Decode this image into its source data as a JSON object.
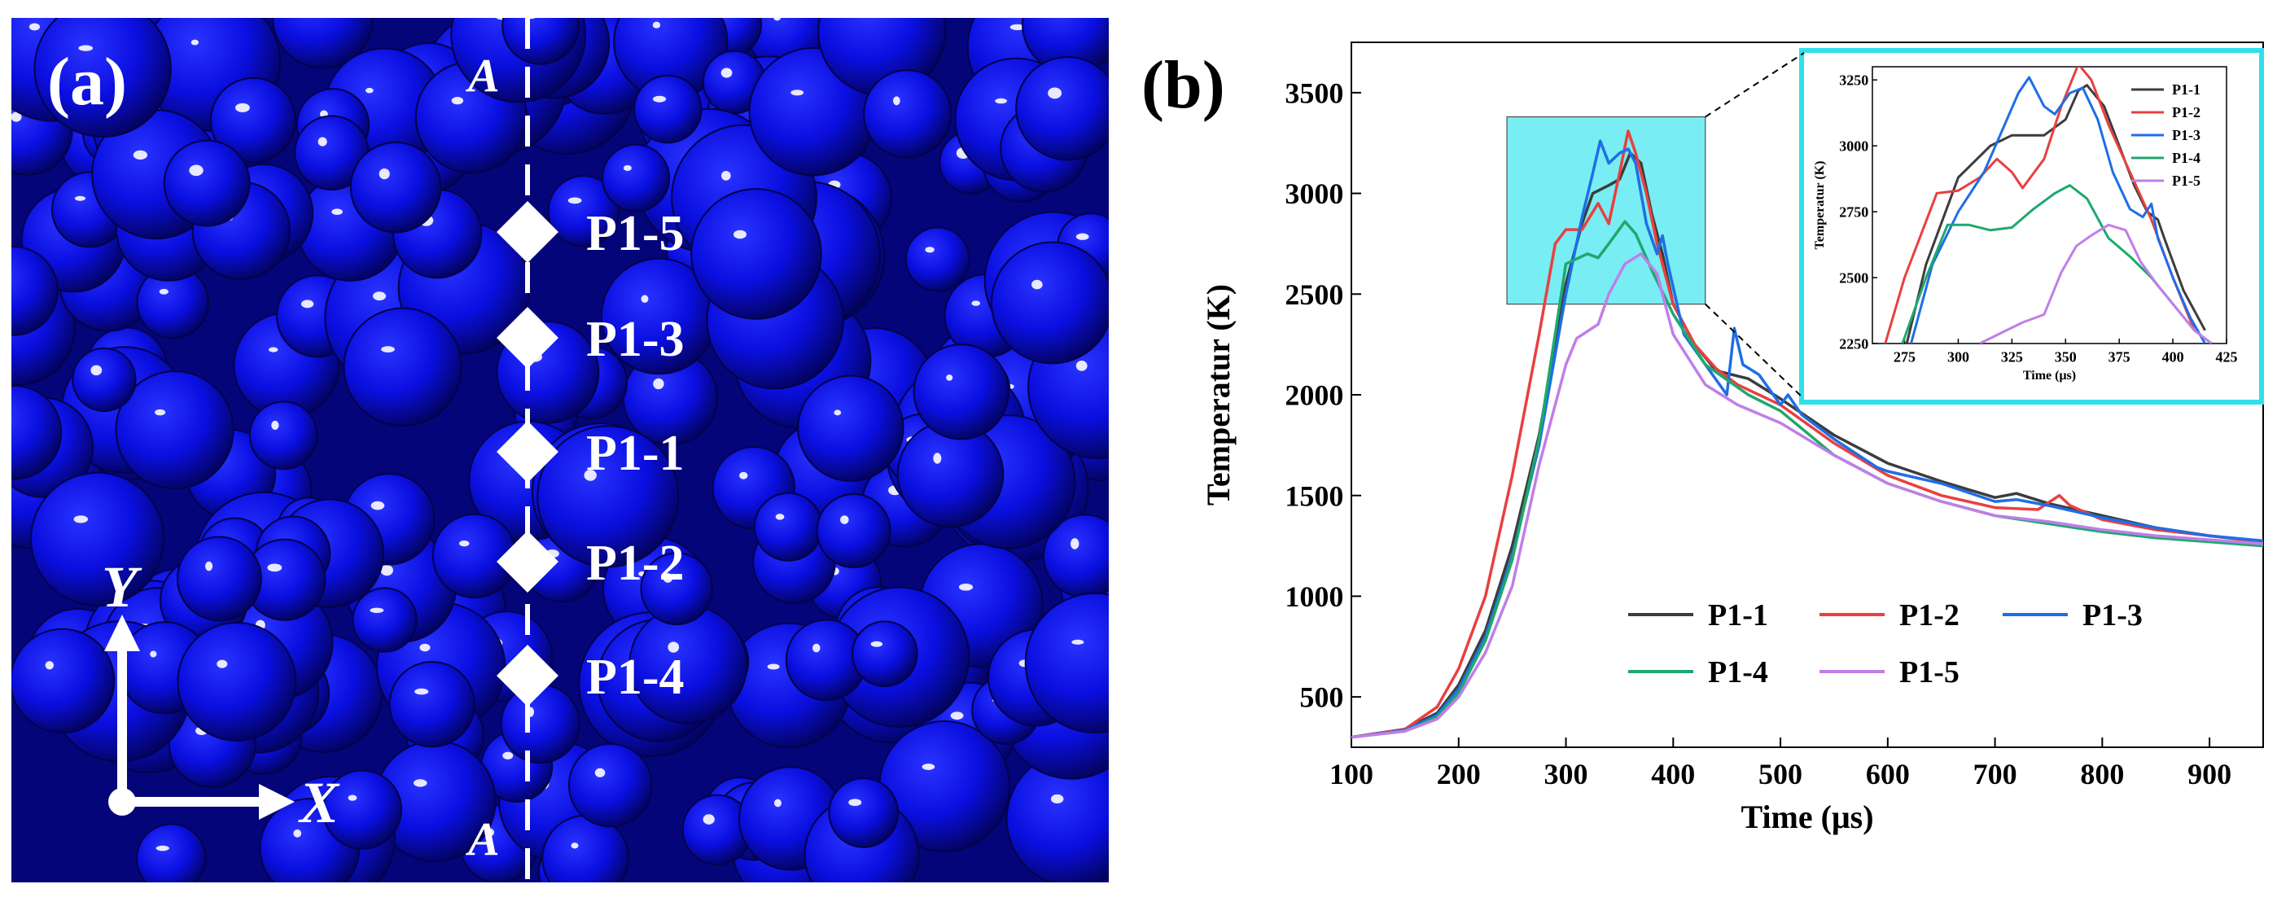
{
  "panel_a": {
    "label": "(a)",
    "section_label_top": "A",
    "section_label_bottom": "A",
    "axis_y_label": "Y",
    "axis_x_label": "X",
    "points": [
      {
        "name": "P1-5"
      },
      {
        "name": "P1-3"
      },
      {
        "name": "P1-1"
      },
      {
        "name": "P1-2"
      },
      {
        "name": "P1-4"
      }
    ],
    "colors": {
      "particle_base": "#0a0fe0",
      "particle_dark": "#06067a",
      "marker": "#ffffff"
    }
  },
  "panel_b": {
    "label": "(b)"
  },
  "chart_data": [
    {
      "id": "main",
      "type": "line",
      "title": "",
      "xlabel": "Time (μs)",
      "ylabel": "Temperatur (K)",
      "xlim": [
        100,
        950
      ],
      "ylim": [
        250,
        3750
      ],
      "xticks": [
        100,
        200,
        300,
        400,
        500,
        600,
        700,
        800,
        900
      ],
      "yticks": [
        500,
        1000,
        1500,
        2000,
        2500,
        3000,
        3500
      ],
      "legend": "bottom-right",
      "highlight_box": {
        "x": [
          245,
          430
        ],
        "y": [
          2450,
          3380
        ],
        "color": "#3ee6ee"
      },
      "series": [
        {
          "name": "P1-1",
          "color": "#3c3c3c",
          "points": [
            [
              100,
              300
            ],
            [
              150,
              340
            ],
            [
              180,
              420
            ],
            [
              200,
              560
            ],
            [
              225,
              830
            ],
            [
              250,
              1250
            ],
            [
              275,
              1800
            ],
            [
              300,
              2550
            ],
            [
              315,
              2850
            ],
            [
              325,
              3000
            ],
            [
              340,
              3040
            ],
            [
              350,
              3070
            ],
            [
              360,
              3200
            ],
            [
              370,
              3150
            ],
            [
              380,
              2900
            ],
            [
              390,
              2700
            ],
            [
              400,
              2450
            ],
            [
              420,
              2250
            ],
            [
              440,
              2120
            ],
            [
              455,
              2100
            ],
            [
              470,
              2080
            ],
            [
              500,
              1980
            ],
            [
              550,
              1800
            ],
            [
              600,
              1660
            ],
            [
              650,
              1570
            ],
            [
              700,
              1490
            ],
            [
              720,
              1510
            ],
            [
              750,
              1460
            ],
            [
              800,
              1400
            ],
            [
              850,
              1340
            ],
            [
              900,
              1300
            ],
            [
              950,
              1270
            ]
          ]
        },
        {
          "name": "P1-2",
          "color": "#e84040",
          "points": [
            [
              100,
              300
            ],
            [
              150,
              340
            ],
            [
              180,
              450
            ],
            [
              200,
              640
            ],
            [
              225,
              1000
            ],
            [
              250,
              1600
            ],
            [
              275,
              2300
            ],
            [
              290,
              2750
            ],
            [
              300,
              2820
            ],
            [
              315,
              2820
            ],
            [
              330,
              2950
            ],
            [
              340,
              2850
            ],
            [
              350,
              3100
            ],
            [
              358,
              3310
            ],
            [
              365,
              3200
            ],
            [
              375,
              3000
            ],
            [
              385,
              2750
            ],
            [
              400,
              2450
            ],
            [
              420,
              2250
            ],
            [
              440,
              2130
            ],
            [
              460,
              2050
            ],
            [
              500,
              1950
            ],
            [
              550,
              1760
            ],
            [
              600,
              1600
            ],
            [
              650,
              1500
            ],
            [
              700,
              1440
            ],
            [
              740,
              1430
            ],
            [
              760,
              1500
            ],
            [
              770,
              1450
            ],
            [
              800,
              1380
            ],
            [
              850,
              1330
            ],
            [
              900,
              1300
            ],
            [
              950,
              1270
            ]
          ]
        },
        {
          "name": "P1-3",
          "color": "#1e6ee6",
          "points": [
            [
              100,
              300
            ],
            [
              150,
              335
            ],
            [
              180,
              410
            ],
            [
              200,
              540
            ],
            [
              225,
              800
            ],
            [
              250,
              1200
            ],
            [
              275,
              1750
            ],
            [
              300,
              2500
            ],
            [
              315,
              2880
            ],
            [
              325,
              3100
            ],
            [
              332,
              3260
            ],
            [
              340,
              3150
            ],
            [
              350,
              3200
            ],
            [
              358,
              3220
            ],
            [
              365,
              3150
            ],
            [
              375,
              2850
            ],
            [
              385,
              2700
            ],
            [
              390,
              2790
            ],
            [
              395,
              2650
            ],
            [
              410,
              2300
            ],
            [
              430,
              2150
            ],
            [
              450,
              2000
            ],
            [
              457,
              2330
            ],
            [
              465,
              2150
            ],
            [
              480,
              2100
            ],
            [
              500,
              1950
            ],
            [
              507,
              2000
            ],
            [
              520,
              1900
            ],
            [
              550,
              1780
            ],
            [
              590,
              1640
            ],
            [
              600,
              1620
            ],
            [
              650,
              1560
            ],
            [
              700,
              1470
            ],
            [
              720,
              1480
            ],
            [
              750,
              1450
            ],
            [
              800,
              1390
            ],
            [
              850,
              1340
            ],
            [
              900,
              1300
            ],
            [
              950,
              1275
            ]
          ]
        },
        {
          "name": "P1-4",
          "color": "#1ea86e",
          "points": [
            [
              100,
              300
            ],
            [
              150,
              330
            ],
            [
              180,
              400
            ],
            [
              200,
              520
            ],
            [
              225,
              780
            ],
            [
              250,
              1180
            ],
            [
              275,
              1780
            ],
            [
              300,
              2650
            ],
            [
              320,
              2700
            ],
            [
              330,
              2680
            ],
            [
              340,
              2750
            ],
            [
              355,
              2860
            ],
            [
              365,
              2800
            ],
            [
              380,
              2620
            ],
            [
              400,
              2400
            ],
            [
              430,
              2150
            ],
            [
              470,
              2000
            ],
            [
              500,
              1920
            ],
            [
              550,
              1700
            ],
            [
              600,
              1560
            ],
            [
              650,
              1470
            ],
            [
              700,
              1400
            ],
            [
              750,
              1360
            ],
            [
              800,
              1320
            ],
            [
              850,
              1290
            ],
            [
              900,
              1270
            ],
            [
              950,
              1250
            ]
          ]
        },
        {
          "name": "P1-5",
          "color": "#c07ee8",
          "points": [
            [
              100,
              300
            ],
            [
              150,
              330
            ],
            [
              180,
              390
            ],
            [
              200,
              500
            ],
            [
              225,
              720
            ],
            [
              250,
              1050
            ],
            [
              275,
              1650
            ],
            [
              300,
              2150
            ],
            [
              310,
              2280
            ],
            [
              330,
              2350
            ],
            [
              340,
              2500
            ],
            [
              355,
              2650
            ],
            [
              370,
              2700
            ],
            [
              385,
              2600
            ],
            [
              400,
              2300
            ],
            [
              430,
              2050
            ],
            [
              460,
              1950
            ],
            [
              500,
              1860
            ],
            [
              550,
              1700
            ],
            [
              600,
              1560
            ],
            [
              650,
              1470
            ],
            [
              700,
              1400
            ],
            [
              750,
              1370
            ],
            [
              800,
              1330
            ],
            [
              850,
              1300
            ],
            [
              900,
              1280
            ],
            [
              950,
              1260
            ]
          ]
        }
      ]
    },
    {
      "id": "inset",
      "type": "line",
      "title": "",
      "xlabel": "Time (μs)",
      "ylabel": "Temperatur (K)",
      "xlim": [
        260,
        425
      ],
      "ylim": [
        2250,
        3300
      ],
      "xticks": [
        275,
        300,
        325,
        350,
        375,
        400,
        425
      ],
      "yticks": [
        2250,
        2500,
        2750,
        3000,
        3250
      ],
      "legend": "top-right",
      "series": [
        {
          "name": "P1-1",
          "color": "#3c3c3c",
          "points": [
            [
              276,
              2250
            ],
            [
              285,
              2550
            ],
            [
              300,
              2880
            ],
            [
              315,
              3000
            ],
            [
              325,
              3040
            ],
            [
              340,
              3040
            ],
            [
              350,
              3100
            ],
            [
              356,
              3210
            ],
            [
              360,
              3230
            ],
            [
              368,
              3150
            ],
            [
              375,
              3000
            ],
            [
              382,
              2850
            ],
            [
              388,
              2750
            ],
            [
              393,
              2720
            ],
            [
              396,
              2650
            ],
            [
              405,
              2450
            ],
            [
              415,
              2300
            ]
          ]
        },
        {
          "name": "P1-2",
          "color": "#e84040",
          "points": [
            [
              266,
              2250
            ],
            [
              275,
              2500
            ],
            [
              290,
              2820
            ],
            [
              300,
              2830
            ],
            [
              310,
              2880
            ],
            [
              318,
              2950
            ],
            [
              325,
              2900
            ],
            [
              330,
              2840
            ],
            [
              340,
              2950
            ],
            [
              348,
              3150
            ],
            [
              356,
              3310
            ],
            [
              362,
              3250
            ],
            [
              370,
              3080
            ],
            [
              380,
              2900
            ],
            [
              390,
              2720
            ],
            [
              400,
              2500
            ],
            [
              410,
              2300
            ]
          ]
        },
        {
          "name": "P1-3",
          "color": "#1e6ee6",
          "points": [
            [
              278,
              2250
            ],
            [
              288,
              2550
            ],
            [
              300,
              2750
            ],
            [
              312,
              2900
            ],
            [
              320,
              3050
            ],
            [
              328,
              3200
            ],
            [
              333,
              3260
            ],
            [
              340,
              3150
            ],
            [
              345,
              3120
            ],
            [
              352,
              3200
            ],
            [
              358,
              3220
            ],
            [
              365,
              3100
            ],
            [
              372,
              2900
            ],
            [
              380,
              2760
            ],
            [
              386,
              2730
            ],
            [
              390,
              2780
            ],
            [
              393,
              2650
            ],
            [
              400,
              2500
            ],
            [
              408,
              2350
            ],
            [
              415,
              2250
            ]
          ]
        },
        {
          "name": "P1-4",
          "color": "#1ea86e",
          "points": [
            [
              274,
              2250
            ],
            [
              285,
              2500
            ],
            [
              295,
              2700
            ],
            [
              305,
              2700
            ],
            [
              315,
              2680
            ],
            [
              325,
              2690
            ],
            [
              335,
              2760
            ],
            [
              345,
              2820
            ],
            [
              352,
              2850
            ],
            [
              360,
              2800
            ],
            [
              370,
              2650
            ],
            [
              380,
              2580
            ],
            [
              390,
              2500
            ],
            [
              400,
              2400
            ],
            [
              410,
              2300
            ],
            [
              418,
              2250
            ]
          ]
        },
        {
          "name": "P1-5",
          "color": "#c07ee8",
          "points": [
            [
              310,
              2250
            ],
            [
              320,
              2290
            ],
            [
              330,
              2330
            ],
            [
              340,
              2360
            ],
            [
              348,
              2520
            ],
            [
              355,
              2620
            ],
            [
              362,
              2660
            ],
            [
              370,
              2700
            ],
            [
              378,
              2680
            ],
            [
              385,
              2560
            ],
            [
              393,
              2470
            ],
            [
              400,
              2400
            ],
            [
              410,
              2300
            ],
            [
              418,
              2250
            ]
          ]
        }
      ]
    }
  ]
}
